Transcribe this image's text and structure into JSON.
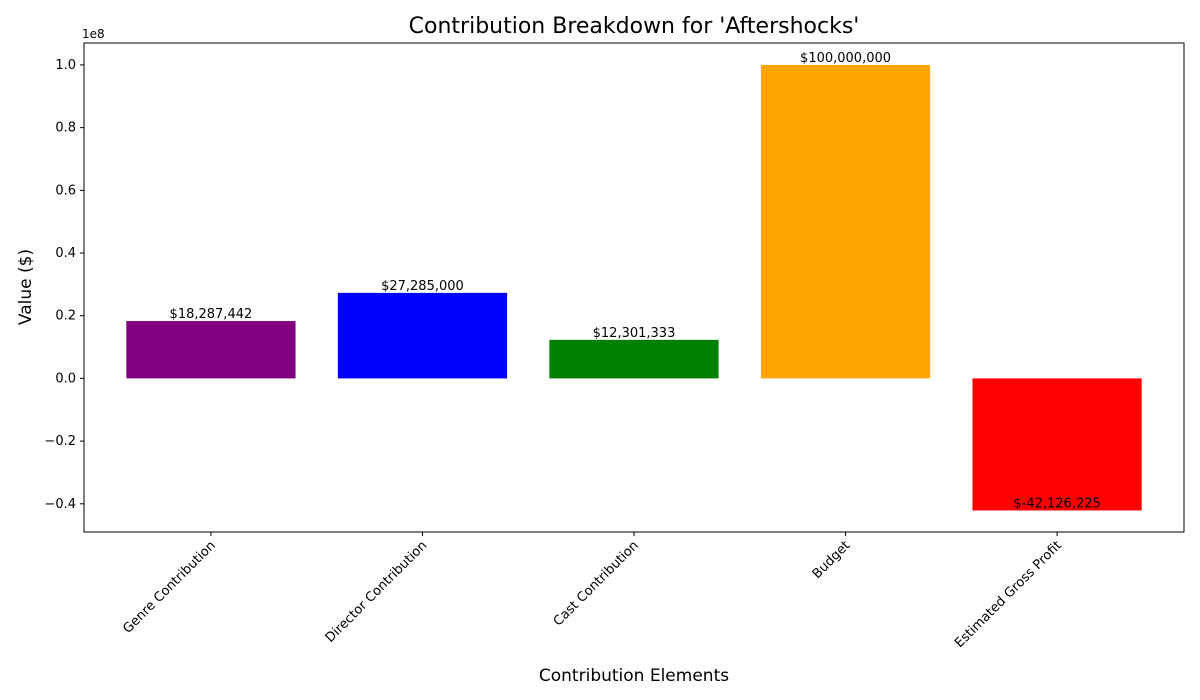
{
  "chart_data": {
    "type": "bar",
    "title": "Contribution Breakdown for 'Aftershocks'",
    "xlabel": "Contribution Elements",
    "ylabel": "Value ($)",
    "y_offset_label": "1e8",
    "categories": [
      "Genre Contribution",
      "Director Contribution",
      "Cast Contribution",
      "Budget",
      "Estimated Gross Profit"
    ],
    "values": [
      18287442,
      27285000,
      12301333,
      100000000,
      -42126225
    ],
    "data_labels": [
      "$18,287,442",
      "$27,285,000",
      "$12,301,333",
      "$100,000,000",
      "$-42,126,225"
    ],
    "colors": [
      "#800080",
      "#0000ff",
      "#008000",
      "#ffa500",
      "#ff0000"
    ],
    "ylim": [
      -0.49,
      1.07
    ],
    "y_ticks": [
      -0.4,
      -0.2,
      0.0,
      0.2,
      0.4,
      0.6,
      0.8,
      1.0
    ],
    "y_tick_labels": [
      "−0.4",
      "−0.2",
      "0.0",
      "0.2",
      "0.4",
      "0.6",
      "0.8",
      "1.0"
    ],
    "grid": false,
    "legend": "none"
  }
}
